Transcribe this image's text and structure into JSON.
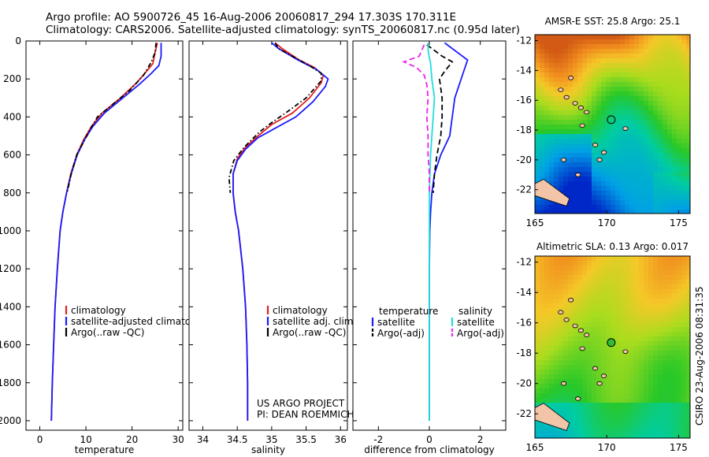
{
  "title": {
    "line1": "Argo profile: AO 5900726_45 16-Aug-2006 20060817_294 17.303S 170.311E",
    "line2": "Climatology: CARS2006. Satellite-adjusted climatology: synTS_20060817.nc (0.95d later)"
  },
  "stamp": "CSIRO 23-Aug-2006 08:31:35",
  "project_note": [
    "US ARGO PROJECT",
    "PI: DEAN ROEMMICH"
  ],
  "colors": {
    "climatology": "#e02020",
    "satellite": "#1a1aff",
    "argo": "#000000",
    "sat_salinity": "#22dddd",
    "argo_adj_sal": "#ee22ee"
  },
  "chart_data": [
    {
      "type": "line",
      "xlabel": "temperature",
      "ylabel": "",
      "xlim": [
        -3,
        31
      ],
      "ylim": [
        2050,
        0
      ],
      "xticks": [
        0,
        10,
        20,
        30
      ],
      "yticks": [
        0,
        200,
        400,
        600,
        800,
        1000,
        1200,
        1400,
        1600,
        1800,
        2000
      ],
      "legend": [
        "climatology",
        "satellite-adjusted climatology",
        "Argo(..raw -QC)"
      ],
      "series": [
        {
          "name": "climatology",
          "color": "#e02020",
          "style": "solid",
          "points": [
            [
              25.5,
              10
            ],
            [
              25.0,
              60
            ],
            [
              24.5,
              120
            ],
            [
              23.5,
              150
            ],
            [
              21,
              220
            ],
            [
              17.5,
              300
            ],
            [
              13.5,
              380
            ],
            [
              11.2,
              450
            ],
            [
              9.5,
              520
            ],
            [
              8,
              600
            ],
            [
              6.7,
              700
            ],
            [
              5.8,
              800
            ],
            [
              5.0,
              900
            ],
            [
              4.4,
              1000
            ],
            [
              3.8,
              1200
            ],
            [
              3.3,
              1400
            ],
            [
              3.0,
              1600
            ],
            [
              2.7,
              1800
            ],
            [
              2.5,
              2000
            ]
          ]
        },
        {
          "name": "satellite-adjusted climatology",
          "color": "#1a1aff",
          "style": "solid",
          "points": [
            [
              26.3,
              10
            ],
            [
              26.3,
              80
            ],
            [
              25.8,
              130
            ],
            [
              24.2,
              170
            ],
            [
              21.5,
              230
            ],
            [
              18,
              300
            ],
            [
              14,
              380
            ],
            [
              11.5,
              450
            ],
            [
              9.7,
              520
            ],
            [
              8.1,
              600
            ],
            [
              6.8,
              700
            ],
            [
              5.8,
              800
            ],
            [
              5.0,
              900
            ],
            [
              4.4,
              1000
            ],
            [
              3.8,
              1200
            ],
            [
              3.3,
              1400
            ],
            [
              3.0,
              1600
            ],
            [
              2.7,
              1800
            ],
            [
              2.5,
              2000
            ]
          ]
        },
        {
          "name": "Argo(..raw -QC)",
          "color": "#000000",
          "style": "dashdot",
          "points": [
            [
              25.2,
              10
            ],
            [
              25.0,
              60
            ],
            [
              24.2,
              110
            ],
            [
              22.5,
              180
            ],
            [
              19.5,
              260
            ],
            [
              16,
              330
            ],
            [
              12.5,
              400
            ],
            [
              10.8,
              470
            ],
            [
              9.3,
              540
            ],
            [
              8.0,
              600
            ],
            [
              6.8,
              700
            ],
            [
              5.9,
              800
            ]
          ]
        }
      ]
    },
    {
      "type": "line",
      "xlabel": "salinity",
      "ylabel": "",
      "xlim": [
        33.8,
        36.1
      ],
      "ylim": [
        2050,
        0
      ],
      "xticks": [
        34,
        34.5,
        35,
        35.5,
        36
      ],
      "legend": [
        "climatology",
        "satellite adj. clim.",
        "Argo(..raw -QC)"
      ],
      "series": [
        {
          "name": "climatology",
          "color": "#e02020",
          "style": "solid",
          "points": [
            [
              35.05,
              10
            ],
            [
              35.15,
              40
            ],
            [
              35.4,
              100
            ],
            [
              35.62,
              140
            ],
            [
              35.75,
              180
            ],
            [
              35.72,
              220
            ],
            [
              35.55,
              300
            ],
            [
              35.3,
              380
            ],
            [
              35.0,
              440
            ],
            [
              34.8,
              500
            ],
            [
              34.62,
              560
            ],
            [
              34.5,
              620
            ],
            [
              34.44,
              700
            ],
            [
              34.44,
              800
            ],
            [
              34.47,
              900
            ],
            [
              34.52,
              1000
            ],
            [
              34.58,
              1200
            ],
            [
              34.62,
              1400
            ],
            [
              34.64,
              1600
            ],
            [
              34.65,
              1800
            ],
            [
              34.65,
              2000
            ]
          ]
        },
        {
          "name": "satellite adj. clim.",
          "color": "#1a1aff",
          "style": "solid",
          "points": [
            [
              35.0,
              10
            ],
            [
              35.1,
              40
            ],
            [
              35.38,
              100
            ],
            [
              35.65,
              150
            ],
            [
              35.82,
              200
            ],
            [
              35.78,
              240
            ],
            [
              35.6,
              320
            ],
            [
              35.35,
              400
            ],
            [
              35.05,
              460
            ],
            [
              34.8,
              510
            ],
            [
              34.62,
              570
            ],
            [
              34.5,
              630
            ],
            [
              34.44,
              700
            ],
            [
              34.44,
              800
            ],
            [
              34.47,
              900
            ],
            [
              34.52,
              1000
            ],
            [
              34.58,
              1200
            ],
            [
              34.62,
              1400
            ],
            [
              34.64,
              1600
            ],
            [
              34.65,
              1800
            ],
            [
              34.65,
              2000
            ]
          ]
        },
        {
          "name": "Argo(..raw -QC)",
          "color": "#000000",
          "style": "dashdot",
          "points": [
            [
              35.05,
              10
            ],
            [
              35.1,
              40
            ],
            [
              35.35,
              90
            ],
            [
              35.55,
              130
            ],
            [
              35.72,
              170
            ],
            [
              35.72,
              210
            ],
            [
              35.5,
              300
            ],
            [
              35.2,
              380
            ],
            [
              35.0,
              430
            ],
            [
              34.82,
              480
            ],
            [
              34.6,
              560
            ],
            [
              34.45,
              630
            ],
            [
              34.38,
              720
            ],
            [
              34.4,
              800
            ]
          ]
        }
      ]
    },
    {
      "type": "line",
      "xlabel": "difference from climatology",
      "ylabel": "",
      "xlim": [
        -3.0,
        3.0
      ],
      "ylim": [
        2050,
        0
      ],
      "xticks": [
        -2,
        0,
        2
      ],
      "legend": [
        "temperature",
        "satellite",
        "Argo(-adj)",
        "salinity",
        "satellite",
        "Argo(-adj)"
      ],
      "series": [
        {
          "name": "satellite",
          "group": "temperature",
          "color": "#1a1aff",
          "style": "solid",
          "points": [
            [
              0.6,
              10
            ],
            [
              1.3,
              80
            ],
            [
              1.5,
              100
            ],
            [
              1.3,
              180
            ],
            [
              1.0,
              300
            ],
            [
              0.9,
              400
            ],
            [
              0.8,
              500
            ],
            [
              0.45,
              600
            ],
            [
              0.2,
              700
            ],
            [
              0.1,
              800
            ],
            [
              0.05,
              900
            ],
            [
              0.02,
              1000
            ],
            [
              0.0,
              1200
            ],
            [
              0.0,
              2000
            ]
          ]
        },
        {
          "name": "Argo(-adj)",
          "group": "temperature",
          "color": "#000000",
          "style": "dashed",
          "points": [
            [
              -0.1,
              20
            ],
            [
              0.5,
              80
            ],
            [
              0.9,
              110
            ],
            [
              0.6,
              160
            ],
            [
              0.4,
              200
            ],
            [
              0.5,
              300
            ],
            [
              0.5,
              400
            ],
            [
              0.45,
              500
            ],
            [
              0.3,
              600
            ],
            [
              0.2,
              700
            ],
            [
              0.15,
              800
            ]
          ]
        },
        {
          "name": "satellite",
          "group": "salinity",
          "color": "#22dddd",
          "style": "solid",
          "points": [
            [
              -0.05,
              10
            ],
            [
              -0.05,
              50
            ],
            [
              0.05,
              120
            ],
            [
              0.1,
              200
            ],
            [
              0.2,
              300
            ],
            [
              0.15,
              400
            ],
            [
              0.1,
              500
            ],
            [
              0.05,
              600
            ],
            [
              0.0,
              800
            ],
            [
              0.0,
              1000
            ],
            [
              0.0,
              2000
            ]
          ]
        },
        {
          "name": "Argo(-adj)",
          "group": "salinity",
          "color": "#ee22ee",
          "style": "dashed",
          "points": [
            [
              -0.2,
              20
            ],
            [
              -0.4,
              80
            ],
            [
              -1.0,
              110
            ],
            [
              -0.5,
              140
            ],
            [
              -0.2,
              180
            ],
            [
              -0.1,
              230
            ],
            [
              -0.05,
              300
            ],
            [
              -0.1,
              400
            ],
            [
              -0.05,
              500
            ],
            [
              -0.05,
              600
            ],
            [
              0.0,
              700
            ],
            [
              0.0,
              800
            ]
          ]
        }
      ]
    }
  ],
  "maps": [
    {
      "title": "AMSR-E SST: 25.8 Argo: 25.1",
      "xticks": [
        "165",
        "170",
        "175"
      ],
      "yticks": [
        "-12",
        "-14",
        "-16",
        "-18",
        "-20",
        "-22"
      ],
      "xlim": [
        165,
        175.8
      ],
      "ylim": [
        -23.6,
        -11.6
      ],
      "argo_lon": 170.311,
      "argo_lat": -17.303,
      "palette": "sst"
    },
    {
      "title": "Altimetric SLA: 0.13 Argo: 0.017",
      "xticks": [
        "165",
        "170",
        "175"
      ],
      "yticks": [
        "-12",
        "-14",
        "-16",
        "-18",
        "-20",
        "-22"
      ],
      "xlim": [
        165,
        175.8
      ],
      "ylim": [
        -23.6,
        -11.6
      ],
      "argo_lon": 170.311,
      "argo_lat": -17.303,
      "palette": "sla"
    }
  ]
}
